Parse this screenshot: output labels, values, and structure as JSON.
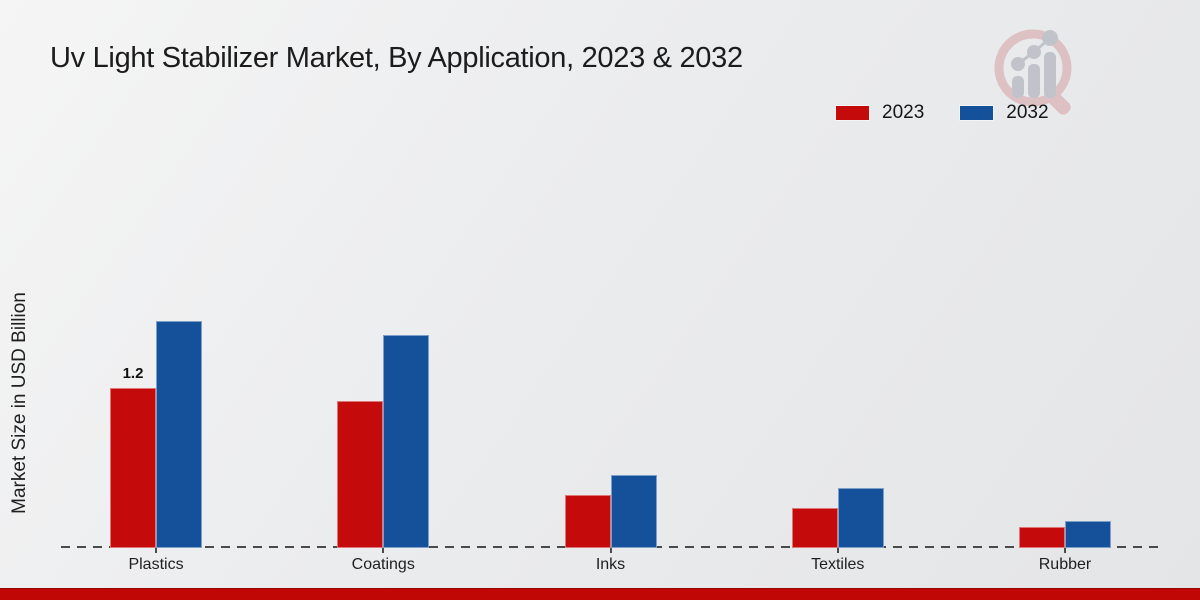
{
  "title": "Uv Light Stabilizer Market, By Application, 2023 & 2032",
  "ylabel": "Market Size in USD Billion",
  "legend": [
    {
      "label": "2023",
      "color": "#c40a0a"
    },
    {
      "label": "2032",
      "color": "#15509b"
    }
  ],
  "footer": {
    "accent_color": "#c10606"
  },
  "watermark_name": "market-research-magnifier-logo",
  "chart_data": {
    "type": "bar",
    "title": "Uv Light Stabilizer Market, By Application, 2023 & 2032",
    "categories": [
      "Plastics",
      "Coatings",
      "Inks",
      "Textiles",
      "Rubber"
    ],
    "series": [
      {
        "name": "2023",
        "color": "#c40a0a",
        "values": [
          1.2,
          1.1,
          0.4,
          0.3,
          0.16
        ]
      },
      {
        "name": "2032",
        "color": "#15509b",
        "values": [
          1.7,
          1.6,
          0.55,
          0.45,
          0.2
        ]
      }
    ],
    "point_labels": [
      {
        "series_index": 0,
        "category_index": 0,
        "text": "1.2"
      }
    ],
    "xlabel": "",
    "ylabel": "Market Size in USD Billion",
    "ylim": [
      0,
      2.0
    ],
    "grid": false,
    "axis_style": "dashed-baseline-only",
    "legend_position": "top-right"
  }
}
